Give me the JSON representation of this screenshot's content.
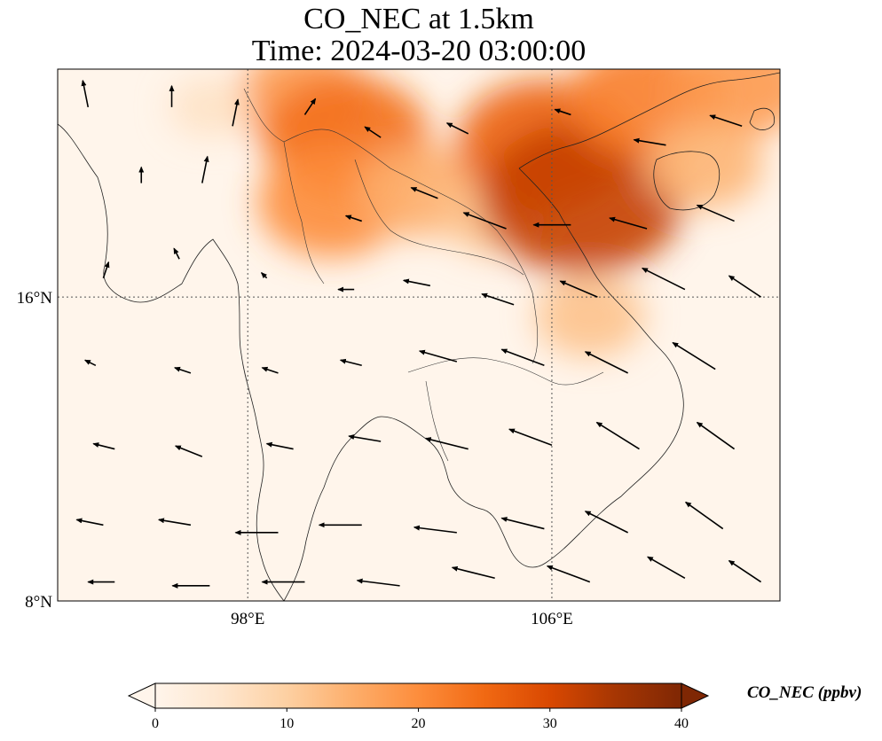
{
  "title_line1": "CO_NEC at 1.5km",
  "title_line2": "Time: 2024-03-20 03:00:00",
  "map": {
    "lon_range": [
      93,
      112
    ],
    "lat_range": [
      8,
      22
    ],
    "gridlines": {
      "lon": [
        98,
        106
      ],
      "lat": [
        16
      ],
      "lon_labels": [
        "98°E",
        "106°E"
      ],
      "lat_labels": [
        "16°N",
        "8°N"
      ],
      "style": "dotted"
    },
    "background_color": "#fff5eb"
  },
  "colorbar": {
    "label": "CO_NEC (ppbv)",
    "min": 0,
    "max": 40,
    "ticks": [
      "0",
      "10",
      "20",
      "30",
      "40"
    ],
    "colors": [
      "#fff5eb",
      "#fee6ce",
      "#fdd0a2",
      "#fdae6b",
      "#fd8d3c",
      "#f16913",
      "#d94801",
      "#a63603",
      "#7f2704"
    ],
    "extend": "both"
  },
  "concentration_blobs": [
    {
      "lon": 99.5,
      "lat": 21.2,
      "value": 18
    },
    {
      "lon": 100.6,
      "lat": 20.2,
      "value": 24
    },
    {
      "lon": 100.2,
      "lat": 18.5,
      "value": 20
    },
    {
      "lon": 102.5,
      "lat": 18.8,
      "value": 15
    },
    {
      "lon": 104.5,
      "lat": 18.2,
      "value": 12
    },
    {
      "lon": 105.8,
      "lat": 20.0,
      "value": 26
    },
    {
      "lon": 106.8,
      "lat": 18.6,
      "value": 32
    },
    {
      "lon": 108.5,
      "lat": 21.2,
      "value": 22
    },
    {
      "lon": 111.0,
      "lat": 21.6,
      "value": 18
    },
    {
      "lon": 110.0,
      "lat": 19.5,
      "value": 14
    },
    {
      "lon": 107.0,
      "lat": 15.5,
      "value": 12
    },
    {
      "lon": 97.0,
      "lat": 21.0,
      "value": 6
    }
  ],
  "wind": [
    {
      "lon": 93.8,
      "lat": 21.0,
      "u": -1,
      "v": 5
    },
    {
      "lon": 96.0,
      "lat": 21.0,
      "u": 0,
      "v": 4
    },
    {
      "lon": 97.6,
      "lat": 20.5,
      "u": 1,
      "v": 5
    },
    {
      "lon": 95.2,
      "lat": 19.0,
      "u": 0,
      "v": 3
    },
    {
      "lon": 96.8,
      "lat": 19.0,
      "u": 1,
      "v": 5
    },
    {
      "lon": 99.5,
      "lat": 20.8,
      "u": 2,
      "v": 3
    },
    {
      "lon": 101.5,
      "lat": 20.2,
      "u": -3,
      "v": 2
    },
    {
      "lon": 103.8,
      "lat": 20.3,
      "u": -4,
      "v": 2
    },
    {
      "lon": 106.5,
      "lat": 20.8,
      "u": -3,
      "v": 1
    },
    {
      "lon": 109.0,
      "lat": 20.0,
      "u": -6,
      "v": 1
    },
    {
      "lon": 111.0,
      "lat": 20.5,
      "u": -6,
      "v": 2
    },
    {
      "lon": 101.0,
      "lat": 18.0,
      "u": -3,
      "v": 1
    },
    {
      "lon": 103.0,
      "lat": 18.6,
      "u": -5,
      "v": 2
    },
    {
      "lon": 104.8,
      "lat": 17.8,
      "u": -8,
      "v": 3
    },
    {
      "lon": 106.5,
      "lat": 17.9,
      "u": -7,
      "v": 0
    },
    {
      "lon": 108.5,
      "lat": 17.8,
      "u": -7,
      "v": 2
    },
    {
      "lon": 110.8,
      "lat": 18.0,
      "u": -7,
      "v": 3
    },
    {
      "lon": 94.2,
      "lat": 16.5,
      "u": 1,
      "v": 3
    },
    {
      "lon": 96.2,
      "lat": 17.0,
      "u": -1,
      "v": 2
    },
    {
      "lon": 98.5,
      "lat": 16.5,
      "u": -1,
      "v": 1
    },
    {
      "lon": 100.8,
      "lat": 16.2,
      "u": -3,
      "v": 0
    },
    {
      "lon": 102.8,
      "lat": 16.3,
      "u": -5,
      "v": 1
    },
    {
      "lon": 105.0,
      "lat": 15.8,
      "u": -6,
      "v": 2
    },
    {
      "lon": 107.2,
      "lat": 16.0,
      "u": -7,
      "v": 3
    },
    {
      "lon": 109.5,
      "lat": 16.2,
      "u": -8,
      "v": 4
    },
    {
      "lon": 111.5,
      "lat": 16.0,
      "u": -6,
      "v": 4
    },
    {
      "lon": 94.0,
      "lat": 14.2,
      "u": -2,
      "v": 1
    },
    {
      "lon": 96.5,
      "lat": 14.0,
      "u": -3,
      "v": 1
    },
    {
      "lon": 98.8,
      "lat": 14.0,
      "u": -3,
      "v": 1
    },
    {
      "lon": 101.0,
      "lat": 14.2,
      "u": -4,
      "v": 1
    },
    {
      "lon": 103.5,
      "lat": 14.3,
      "u": -7,
      "v": 2
    },
    {
      "lon": 105.8,
      "lat": 14.2,
      "u": -8,
      "v": 3
    },
    {
      "lon": 108.0,
      "lat": 14.0,
      "u": -8,
      "v": 4
    },
    {
      "lon": 110.3,
      "lat": 14.1,
      "u": -8,
      "v": 5
    },
    {
      "lon": 94.5,
      "lat": 12.0,
      "u": -4,
      "v": 1
    },
    {
      "lon": 96.8,
      "lat": 11.8,
      "u": -5,
      "v": 2
    },
    {
      "lon": 99.2,
      "lat": 12.0,
      "u": -5,
      "v": 1
    },
    {
      "lon": 101.5,
      "lat": 12.2,
      "u": -6,
      "v": 1
    },
    {
      "lon": 103.8,
      "lat": 12.0,
      "u": -8,
      "v": 2
    },
    {
      "lon": 106.0,
      "lat": 12.1,
      "u": -8,
      "v": 3
    },
    {
      "lon": 108.3,
      "lat": 12.0,
      "u": -8,
      "v": 5
    },
    {
      "lon": 110.8,
      "lat": 12.0,
      "u": -7,
      "v": 5
    },
    {
      "lon": 94.2,
      "lat": 10.0,
      "u": -5,
      "v": 1
    },
    {
      "lon": 96.5,
      "lat": 10.0,
      "u": -6,
      "v": 1
    },
    {
      "lon": 98.8,
      "lat": 9.8,
      "u": -8,
      "v": 0
    },
    {
      "lon": 101.0,
      "lat": 10.0,
      "u": -8,
      "v": 0
    },
    {
      "lon": 103.5,
      "lat": 9.8,
      "u": -8,
      "v": 1
    },
    {
      "lon": 105.8,
      "lat": 9.9,
      "u": -8,
      "v": 2
    },
    {
      "lon": 108.0,
      "lat": 9.8,
      "u": -8,
      "v": 4
    },
    {
      "lon": 110.5,
      "lat": 9.9,
      "u": -7,
      "v": 5
    },
    {
      "lon": 94.5,
      "lat": 8.5,
      "u": -5,
      "v": 0
    },
    {
      "lon": 97.0,
      "lat": 8.4,
      "u": -7,
      "v": 0
    },
    {
      "lon": 99.5,
      "lat": 8.5,
      "u": -8,
      "v": 0
    },
    {
      "lon": 102.0,
      "lat": 8.4,
      "u": -8,
      "v": 1
    },
    {
      "lon": 104.5,
      "lat": 8.6,
      "u": -8,
      "v": 2
    },
    {
      "lon": 107.0,
      "lat": 8.5,
      "u": -8,
      "v": 3
    },
    {
      "lon": 109.5,
      "lat": 8.6,
      "u": -7,
      "v": 4
    },
    {
      "lon": 111.5,
      "lat": 8.5,
      "u": -6,
      "v": 4
    }
  ]
}
